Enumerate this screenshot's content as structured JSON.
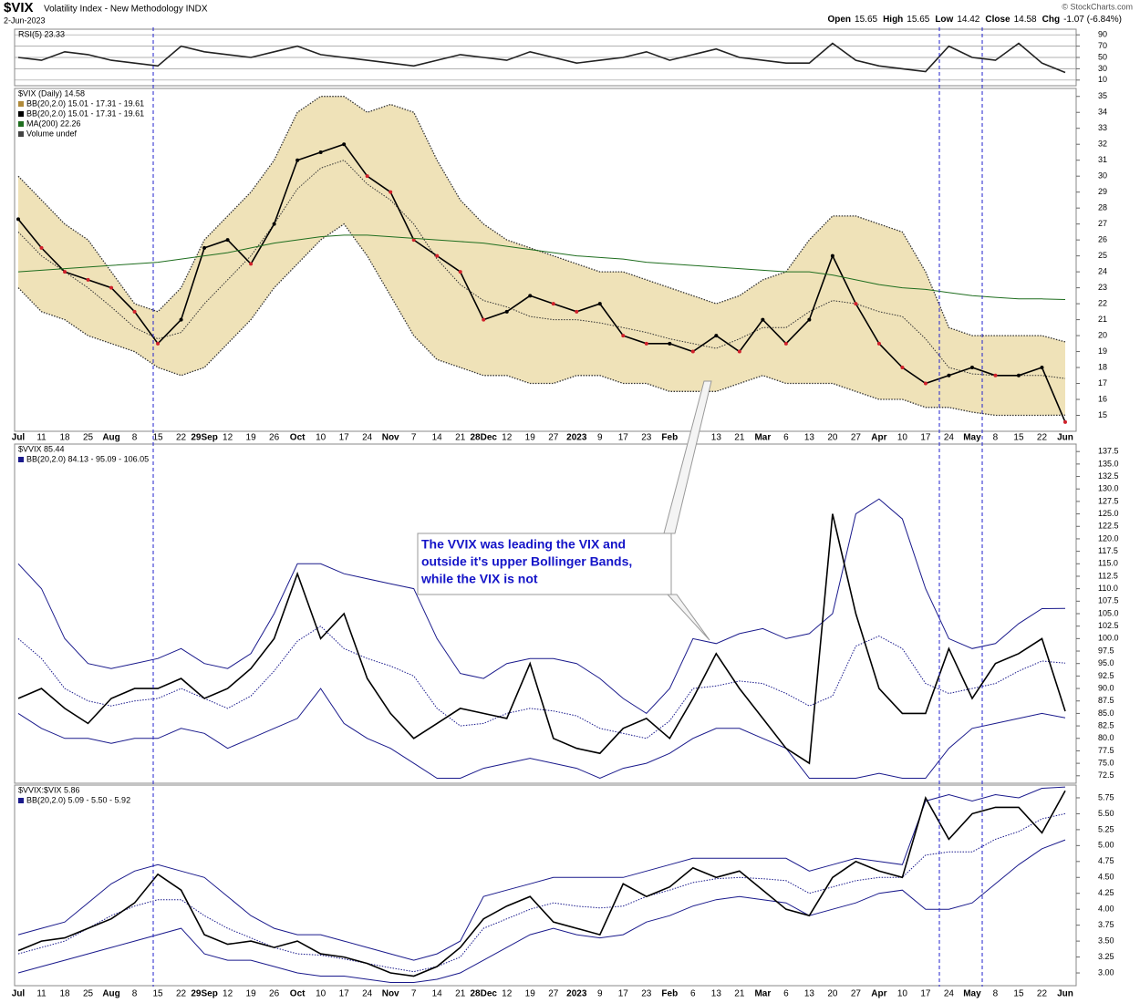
{
  "header": {
    "symbol": "$VIX",
    "name": "Volatility Index - New Methodology INDX",
    "date": "2-Jun-2023",
    "credit": "© StockCharts.com",
    "quote": [
      {
        "label": "Open",
        "value": "15.65"
      },
      {
        "label": "High",
        "value": "15.65"
      },
      {
        "label": "Low",
        "value": "14.42"
      },
      {
        "label": "Close",
        "value": "14.58"
      },
      {
        "label": "Chg",
        "value": "-1.07 (-6.84%)"
      }
    ]
  },
  "chart_data": [
    {
      "type": "line",
      "title": "RSI(5) 23.33",
      "series": [
        {
          "name": "RSI(5)",
          "color": "#222222",
          "values": [
            50,
            45,
            60,
            55,
            45,
            40,
            35,
            70,
            60,
            55,
            50,
            60,
            70,
            55,
            50,
            45,
            40,
            35,
            45,
            55,
            50,
            45,
            60,
            50,
            40,
            45,
            50,
            60,
            45,
            55,
            65,
            50,
            45,
            40,
            40,
            75,
            45,
            35,
            30,
            25,
            70,
            50,
            45,
            75,
            40,
            23.33
          ]
        }
      ],
      "ylim": [
        0,
        100
      ],
      "yticks": [
        10,
        30,
        50,
        70,
        90
      ],
      "grid": true
    },
    {
      "type": "line",
      "title": "$VIX (Daily) 14.58",
      "categories": [
        "Jul",
        "11",
        "18",
        "25",
        "Aug",
        "8",
        "15",
        "22",
        "29Sep",
        "12",
        "19",
        "26",
        "Oct",
        "10",
        "17",
        "24",
        "Nov",
        "7",
        "14",
        "21",
        "28Dec",
        "12",
        "19",
        "27",
        "2023",
        "9",
        "17",
        "23",
        "Feb",
        "6",
        "13",
        "21",
        "Mar",
        "6",
        "13",
        "20",
        "27",
        "Apr",
        "10",
        "17",
        "24",
        "May",
        "8",
        "15",
        "22",
        "Jun"
      ],
      "series": [
        {
          "name": "$VIX",
          "color": "#000000",
          "values": [
            27.3,
            25.5,
            24,
            23.5,
            23,
            21.5,
            19.5,
            21,
            25.5,
            26,
            24.5,
            27,
            31,
            31.5,
            32,
            30,
            29,
            26,
            25,
            24,
            21,
            21.5,
            22.5,
            22,
            21.5,
            22,
            20,
            19.5,
            19.5,
            19,
            20,
            19,
            21,
            19.5,
            21,
            25,
            22,
            19.5,
            18,
            17,
            17.5,
            18,
            17.5,
            17.5,
            18,
            14.58
          ]
        },
        {
          "name": "MA(200) 22.26",
          "color": "#1f6e1f",
          "values": [
            24,
            24.1,
            24.2,
            24.3,
            24.4,
            24.5,
            24.6,
            24.8,
            25,
            25.2,
            25.5,
            25.8,
            26,
            26.2,
            26.3,
            26.3,
            26.2,
            26.1,
            26,
            25.9,
            25.8,
            25.6,
            25.4,
            25.2,
            25,
            24.9,
            24.8,
            24.6,
            24.5,
            24.4,
            24.3,
            24.2,
            24.1,
            24,
            24,
            23.8,
            23.5,
            23.2,
            23,
            22.9,
            22.7,
            22.5,
            22.4,
            22.3,
            22.3,
            22.26
          ]
        }
      ],
      "bands": {
        "names": [
          "BB(20,2.0) 15.01 - 17.31 - 19.61",
          "BB(20,2.0) 15.01 - 17.31 - 19.61"
        ],
        "name_colors": [
          "#b08a3a",
          "#000000"
        ],
        "fill": "#efe2b8",
        "color": "#333333",
        "upper": [
          30,
          28.5,
          27,
          26,
          24,
          22,
          21.5,
          23,
          26,
          27.5,
          29,
          31,
          34,
          35,
          35,
          34,
          34.5,
          34,
          31,
          28.5,
          27,
          26,
          25.5,
          25,
          24.5,
          24,
          24,
          23.5,
          23,
          22.5,
          22,
          22.5,
          23.5,
          24,
          26,
          27.5,
          27.5,
          27,
          26.5,
          24,
          20.5,
          20,
          20,
          20,
          20,
          19.61
        ],
        "middle": [
          26.5,
          25,
          24,
          23,
          21.8,
          20.5,
          19.8,
          20.2,
          22,
          23.5,
          25,
          27,
          29.2,
          30.5,
          31,
          29.5,
          28.5,
          27,
          24.8,
          23.2,
          22.2,
          21.8,
          21.2,
          21,
          21,
          20.8,
          20.5,
          20.2,
          19.8,
          19.5,
          19.2,
          19.8,
          20.5,
          20.5,
          21.5,
          22.2,
          22,
          21.5,
          21.2,
          19.8,
          18,
          17.6,
          17.5,
          17.5,
          17.5,
          17.31
        ],
        "lower": [
          23,
          21.5,
          21,
          20,
          19.5,
          19,
          18,
          17.5,
          18,
          19.5,
          21,
          23,
          24.5,
          26,
          27,
          25,
          22.5,
          20,
          18.5,
          18,
          17.5,
          17.5,
          17,
          17,
          17.5,
          17.5,
          17,
          17,
          16.5,
          16.5,
          16.5,
          17,
          17.5,
          17,
          17,
          17,
          16.5,
          16,
          16,
          15.5,
          15.5,
          15.2,
          15,
          15,
          15,
          15.01
        ]
      },
      "notes": [
        "Volume undef"
      ],
      "ylim": [
        14,
        35.5
      ],
      "yticks": [
        15,
        16,
        17,
        18,
        19,
        20,
        21,
        22,
        23,
        24,
        25,
        26,
        27,
        28,
        29,
        30,
        31,
        32,
        33,
        34,
        35
      ]
    },
    {
      "type": "line",
      "title": "$VVIX 85.44",
      "series": [
        {
          "name": "$VVIX",
          "color": "#000000",
          "values": [
            88,
            90,
            86,
            83,
            88,
            90,
            90,
            92,
            88,
            90,
            94,
            100,
            113,
            100,
            105,
            92,
            85,
            80,
            83,
            86,
            85,
            84,
            95,
            80,
            78,
            77,
            82,
            84,
            80,
            88,
            97,
            90,
            84,
            78,
            75,
            125,
            105,
            90,
            85,
            85,
            98,
            88,
            95,
            97,
            100,
            85.44
          ]
        }
      ],
      "bands": {
        "names": [
          "BB(20,2.0) 84.13 - 95.09 - 106.05"
        ],
        "name_colors": [
          "#1a1a8c"
        ],
        "color": "#1a1a8c",
        "upper": [
          115,
          110,
          100,
          95,
          94,
          95,
          96,
          98,
          95,
          94,
          97,
          105,
          115,
          115,
          113,
          112,
          111,
          110,
          100,
          93,
          92,
          95,
          96,
          96,
          95,
          92,
          88,
          85,
          90,
          100,
          99,
          101,
          102,
          100,
          101,
          105,
          125,
          128,
          124,
          110,
          100,
          98,
          99,
          103,
          106,
          106.05
        ],
        "middle": [
          100,
          96,
          90,
          87.5,
          86.5,
          87.5,
          88,
          90,
          88,
          86,
          88.5,
          93.5,
          99.5,
          102.5,
          98,
          96,
          94.5,
          92.5,
          86,
          82.5,
          83,
          85,
          86,
          85.5,
          84.5,
          82,
          81,
          80,
          83.5,
          90,
          90.5,
          91.5,
          91,
          89,
          86.5,
          88.5,
          98.5,
          100.5,
          98,
          91,
          89,
          90,
          91,
          93.5,
          95.5,
          95.09
        ],
        "lower": [
          85,
          82,
          80,
          80,
          79,
          80,
          80,
          82,
          81,
          78,
          80,
          82,
          84,
          90,
          83,
          80,
          78,
          75,
          72,
          72,
          74,
          75,
          76,
          75,
          74,
          72,
          74,
          75,
          77,
          80,
          82,
          82,
          80,
          78,
          72,
          72,
          72,
          73,
          72,
          72,
          78,
          82,
          83,
          84,
          85,
          84.13
        ]
      },
      "annotation": [
        "The VVIX was leading the VIX and",
        "outside it's upper Bollinger Bands,",
        "while the VIX is not"
      ],
      "ylim": [
        71,
        139
      ],
      "yticks": [
        72.5,
        {
          "value": 75,
          "label": "75.0"
        },
        77.5,
        {
          "value": 80,
          "label": "80.0"
        },
        82.5,
        {
          "value": 85,
          "label": "85.0"
        },
        87.5,
        {
          "value": 90,
          "label": "90.0"
        },
        92.5,
        {
          "value": 95,
          "label": "95.0"
        },
        97.5,
        {
          "value": 100,
          "label": "100.0"
        },
        102.5,
        {
          "value": 105,
          "label": "105.0"
        },
        107.5,
        {
          "value": 110,
          "label": "110.0"
        },
        112.5,
        {
          "value": 115,
          "label": "115.0"
        },
        117.5,
        {
          "value": 120,
          "label": "120.0"
        },
        122.5,
        {
          "value": 125,
          "label": "125.0"
        },
        127.5,
        {
          "value": 130,
          "label": "130.0"
        },
        132.5,
        {
          "value": 135,
          "label": "135.0"
        },
        137.5
      ]
    },
    {
      "type": "line",
      "title": "$VVIX:$VIX 5.86",
      "categories": [
        "Jul",
        "11",
        "18",
        "25",
        "Aug",
        "8",
        "15",
        "22",
        "29Sep",
        "12",
        "19",
        "26",
        "Oct",
        "10",
        "17",
        "24",
        "Nov",
        "7",
        "14",
        "21",
        "28Dec",
        "12",
        "19",
        "27",
        "2023",
        "9",
        "17",
        "23",
        "Feb",
        "6",
        "13",
        "21",
        "Mar",
        "6",
        "13",
        "20",
        "27",
        "Apr",
        "10",
        "17",
        "24",
        "May",
        "8",
        "15",
        "22",
        "Jun"
      ],
      "series": [
        {
          "name": "$VVIX:$VIX",
          "color": "#000000",
          "values": [
            3.35,
            3.5,
            3.55,
            3.7,
            3.85,
            4.1,
            4.55,
            4.3,
            3.6,
            3.45,
            3.5,
            3.4,
            3.5,
            3.3,
            3.25,
            3.15,
            3.0,
            2.95,
            3.1,
            3.4,
            3.85,
            4.05,
            4.2,
            3.8,
            3.7,
            3.6,
            4.4,
            4.2,
            4.35,
            4.65,
            4.5,
            4.6,
            4.3,
            4.0,
            3.9,
            4.5,
            4.75,
            4.6,
            4.5,
            5.75,
            5.1,
            5.5,
            5.6,
            5.6,
            5.2,
            5.86
          ]
        }
      ],
      "bands": {
        "names": [
          "BB(20,2.0) 5.09 - 5.50 - 5.92"
        ],
        "name_colors": [
          "#1a1a8c"
        ],
        "color": "#1a1a8c",
        "upper": [
          3.6,
          3.7,
          3.8,
          4.1,
          4.4,
          4.6,
          4.7,
          4.6,
          4.5,
          4.2,
          3.9,
          3.7,
          3.6,
          3.6,
          3.5,
          3.4,
          3.3,
          3.2,
          3.3,
          3.5,
          4.2,
          4.3,
          4.4,
          4.5,
          4.5,
          4.5,
          4.5,
          4.6,
          4.7,
          4.8,
          4.8,
          4.8,
          4.8,
          4.8,
          4.6,
          4.7,
          4.8,
          4.75,
          4.7,
          5.7,
          5.8,
          5.7,
          5.8,
          5.75,
          5.9,
          5.92
        ],
        "middle": [
          3.3,
          3.4,
          3.5,
          3.7,
          3.9,
          4.05,
          4.15,
          4.15,
          3.9,
          3.7,
          3.55,
          3.4,
          3.3,
          3.28,
          3.22,
          3.15,
          3.08,
          3.02,
          3.1,
          3.25,
          3.7,
          3.85,
          4.0,
          4.1,
          4.05,
          4.02,
          4.05,
          4.2,
          4.3,
          4.42,
          4.48,
          4.5,
          4.48,
          4.45,
          4.25,
          4.35,
          4.45,
          4.5,
          4.5,
          4.85,
          4.9,
          4.9,
          5.1,
          5.22,
          5.42,
          5.5
        ],
        "lower": [
          3.0,
          3.1,
          3.2,
          3.3,
          3.4,
          3.5,
          3.6,
          3.7,
          3.3,
          3.2,
          3.2,
          3.1,
          3.0,
          2.95,
          2.95,
          2.9,
          2.85,
          2.85,
          2.9,
          3.0,
          3.2,
          3.4,
          3.6,
          3.7,
          3.6,
          3.55,
          3.6,
          3.8,
          3.9,
          4.05,
          4.15,
          4.2,
          4.15,
          4.1,
          3.9,
          4.0,
          4.1,
          4.25,
          4.3,
          4.0,
          4.0,
          4.1,
          4.4,
          4.7,
          4.95,
          5.09
        ]
      },
      "ylim": [
        2.8,
        5.95
      ],
      "yticks": [
        {
          "value": 3,
          "label": "3.00"
        },
        3.25,
        {
          "value": 3.5,
          "label": "3.50"
        },
        3.75,
        {
          "value": 4,
          "label": "4.00"
        },
        4.25,
        {
          "value": 4.5,
          "label": "4.50"
        },
        4.75,
        {
          "value": 5,
          "label": "5.00"
        },
        5.25,
        {
          "value": 5.5,
          "label": "5.50"
        },
        5.75
      ]
    }
  ]
}
